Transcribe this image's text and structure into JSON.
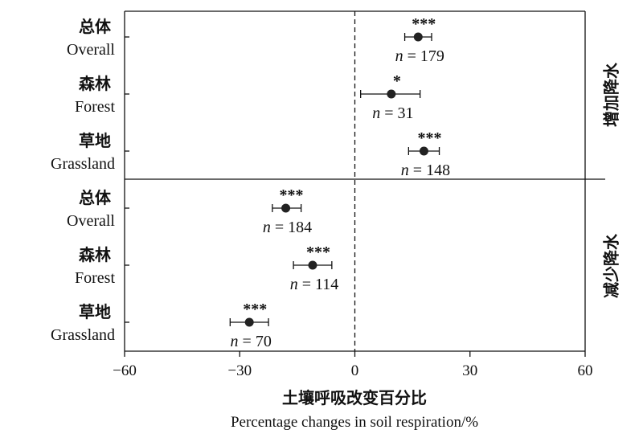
{
  "chart_data": {
    "type": "scatter",
    "title": "",
    "xlabel": "土壤呼吸改变百分比",
    "xlabel_en": "Percentage changes in  soil  respiration/%",
    "ylabel": "",
    "xlim": [
      -60,
      60
    ],
    "xticks": [
      -60,
      -30,
      0,
      30,
      60
    ],
    "grid": false,
    "reference_line_x": 0,
    "groups": [
      {
        "label": "增加降水",
        "items": [
          {
            "label_zh": "总体",
            "label_en": "Overall",
            "mean": 16.5,
            "ci_low": 13,
            "ci_high": 20,
            "sig": "***",
            "n_prefix": "n",
            "n_value": "= 179"
          },
          {
            "label_zh": "森林",
            "label_en": "Forest",
            "mean": 9.5,
            "ci_low": 1.5,
            "ci_high": 17,
            "sig": "*",
            "n_prefix": "n",
            "n_value": "= 31"
          },
          {
            "label_zh": "草地",
            "label_en": "Grassland",
            "mean": 18,
            "ci_low": 14,
            "ci_high": 22,
            "sig": "***",
            "n_prefix": "n",
            "n_value": "= 148"
          }
        ]
      },
      {
        "label": "减少降水",
        "items": [
          {
            "label_zh": "总体",
            "label_en": "Overall",
            "mean": -18,
            "ci_low": -21.5,
            "ci_high": -14,
            "sig": "***",
            "n_prefix": "n",
            "n_value": "= 184"
          },
          {
            "label_zh": "森林",
            "label_en": "Forest",
            "mean": -11,
            "ci_low": -16,
            "ci_high": -6,
            "sig": "***",
            "n_prefix": "n",
            "n_value": "= 114"
          },
          {
            "label_zh": "草地",
            "label_en": "Grassland",
            "mean": -27.5,
            "ci_low": -32.5,
            "ci_high": -22.5,
            "sig": "***",
            "n_prefix": "n",
            "n_value": "= 70"
          }
        ]
      }
    ]
  }
}
